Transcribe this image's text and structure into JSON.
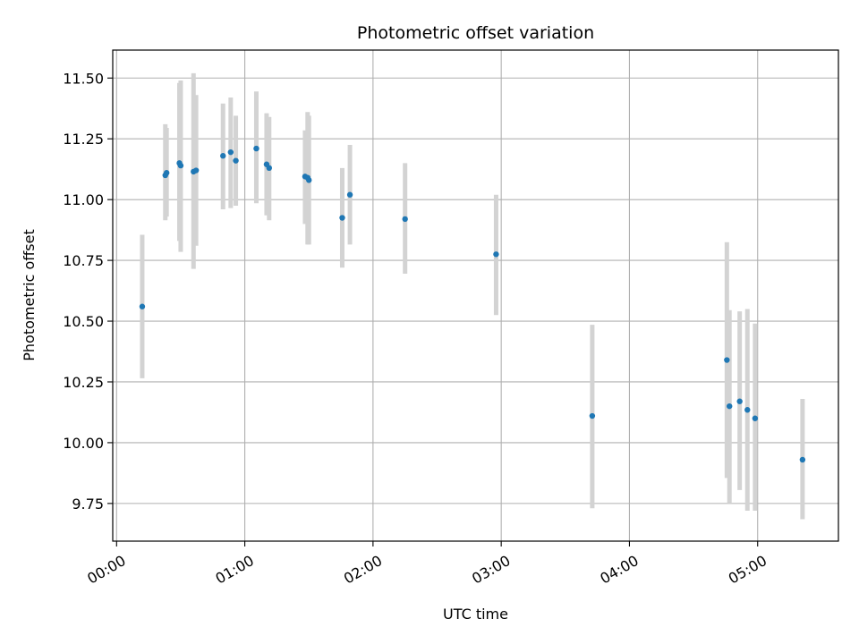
{
  "chart_data": {
    "type": "scatter",
    "title": "Photometric offset variation",
    "xlabel": "UTC time",
    "ylabel": "Photometric offset",
    "x_unit": "hours UTC",
    "xlim": [
      -0.03,
      5.63
    ],
    "ylim": [
      9.595,
      11.615
    ],
    "x_ticks": [
      {
        "value": 0,
        "label": "00:00"
      },
      {
        "value": 1,
        "label": "01:00"
      },
      {
        "value": 2,
        "label": "02:00"
      },
      {
        "value": 3,
        "label": "03:00"
      },
      {
        "value": 4,
        "label": "04:00"
      },
      {
        "value": 5,
        "label": "05:00"
      }
    ],
    "y_ticks": [
      {
        "value": 9.75,
        "label": "9.75"
      },
      {
        "value": 10.0,
        "label": "10.00"
      },
      {
        "value": 10.25,
        "label": "10.25"
      },
      {
        "value": 10.5,
        "label": "10.50"
      },
      {
        "value": 10.75,
        "label": "10.75"
      },
      {
        "value": 11.0,
        "label": "11.00"
      },
      {
        "value": 11.25,
        "label": "11.25"
      },
      {
        "value": 11.5,
        "label": "11.50"
      }
    ],
    "grid": true,
    "colors": {
      "point": "#1f77b4",
      "error_bar": "#d3d3d3",
      "grid": "#b0b0b0"
    },
    "points": [
      {
        "x": 0.2,
        "y": 10.56,
        "err_low": 10.265,
        "err_high": 10.855
      },
      {
        "x": 0.38,
        "y": 11.1,
        "err_low": 10.915,
        "err_high": 11.31
      },
      {
        "x": 0.39,
        "y": 11.11,
        "err_low": 10.93,
        "err_high": 11.295
      },
      {
        "x": 0.49,
        "y": 11.15,
        "err_low": 10.83,
        "err_high": 11.48
      },
      {
        "x": 0.5,
        "y": 11.14,
        "err_low": 10.785,
        "err_high": 11.49
      },
      {
        "x": 0.6,
        "y": 11.115,
        "err_low": 10.715,
        "err_high": 11.52
      },
      {
        "x": 0.62,
        "y": 11.12,
        "err_low": 10.81,
        "err_high": 11.43
      },
      {
        "x": 0.83,
        "y": 11.18,
        "err_low": 10.96,
        "err_high": 11.395
      },
      {
        "x": 0.89,
        "y": 11.195,
        "err_low": 10.965,
        "err_high": 11.42
      },
      {
        "x": 0.93,
        "y": 11.16,
        "err_low": 10.975,
        "err_high": 11.345
      },
      {
        "x": 1.09,
        "y": 11.21,
        "err_low": 10.985,
        "err_high": 11.445
      },
      {
        "x": 1.17,
        "y": 11.145,
        "err_low": 10.935,
        "err_high": 11.355
      },
      {
        "x": 1.19,
        "y": 11.13,
        "err_low": 10.915,
        "err_high": 11.34
      },
      {
        "x": 1.47,
        "y": 11.095,
        "err_low": 10.9,
        "err_high": 11.285
      },
      {
        "x": 1.49,
        "y": 11.09,
        "err_low": 10.815,
        "err_high": 11.36
      },
      {
        "x": 1.5,
        "y": 11.08,
        "err_low": 10.815,
        "err_high": 11.345
      },
      {
        "x": 1.76,
        "y": 10.925,
        "err_low": 10.72,
        "err_high": 11.13
      },
      {
        "x": 1.82,
        "y": 11.02,
        "err_low": 10.815,
        "err_high": 11.225
      },
      {
        "x": 2.25,
        "y": 10.92,
        "err_low": 10.695,
        "err_high": 11.15
      },
      {
        "x": 2.96,
        "y": 10.775,
        "err_low": 10.525,
        "err_high": 11.02
      },
      {
        "x": 3.71,
        "y": 10.11,
        "err_low": 9.73,
        "err_high": 10.485
      },
      {
        "x": 4.76,
        "y": 10.34,
        "err_low": 9.855,
        "err_high": 10.825
      },
      {
        "x": 4.78,
        "y": 10.15,
        "err_low": 9.75,
        "err_high": 10.545
      },
      {
        "x": 4.86,
        "y": 10.17,
        "err_low": 9.805,
        "err_high": 10.54
      },
      {
        "x": 4.92,
        "y": 10.135,
        "err_low": 9.72,
        "err_high": 10.55
      },
      {
        "x": 4.98,
        "y": 10.1,
        "err_low": 9.72,
        "err_high": 10.49
      },
      {
        "x": 5.35,
        "y": 9.93,
        "err_low": 9.685,
        "err_high": 10.18
      }
    ]
  }
}
